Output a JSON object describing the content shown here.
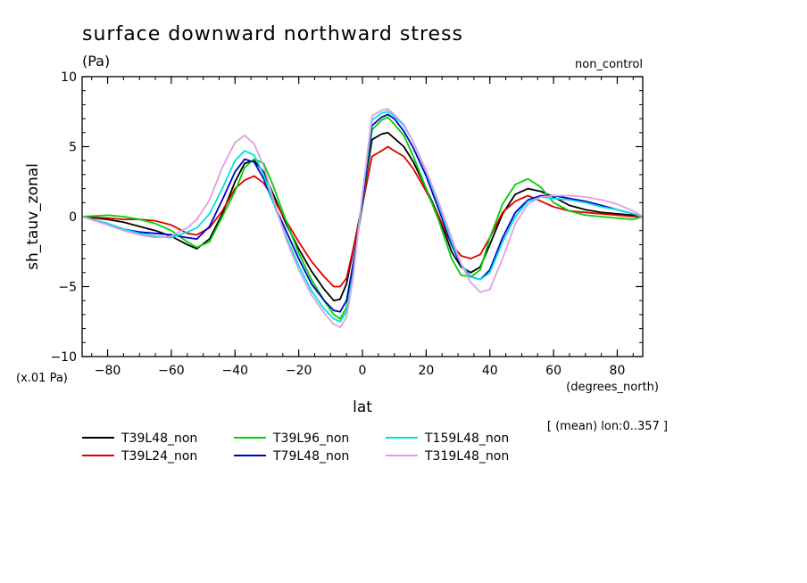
{
  "chart_data": {
    "type": "line",
    "title": "surface downward northward stress",
    "units_label": "(Pa)",
    "experiment_label": "non_control",
    "xlabel": "lat",
    "x_units": "(degrees_north)",
    "ylabel": "sh_tauv_zonal",
    "y_scale_label": "(x.01 Pa)",
    "averaging_note": "[ (mean) lon:0..357 ]",
    "xlim": [
      -88,
      88
    ],
    "ylim": [
      -10,
      10
    ],
    "x_ticks": [
      -80,
      -60,
      -40,
      -20,
      0,
      20,
      40,
      60,
      80
    ],
    "y_ticks": [
      -10,
      -5,
      0,
      5,
      10
    ],
    "y_tick_labels": [
      "−10",
      "−5",
      "0",
      "5",
      "10"
    ],
    "x_tick_labels": [
      "−80",
      "−60",
      "−40",
      "−20",
      "0",
      "20",
      "40",
      "60",
      "80"
    ],
    "legend_placement": "bottom",
    "grid": false,
    "x": [
      -88,
      -80,
      -75,
      -70,
      -65,
      -60,
      -55,
      -52,
      -48,
      -44,
      -40,
      -37,
      -34,
      -31,
      -28,
      -24,
      -20,
      -16,
      -12,
      -9,
      -7,
      -5,
      -3,
      0,
      3,
      6,
      8,
      10,
      13,
      16,
      20,
      24,
      28,
      31,
      34,
      37,
      40,
      44,
      48,
      52,
      56,
      60,
      65,
      70,
      75,
      80,
      85,
      88
    ],
    "series": [
      {
        "name": "T39L48_non",
        "color": "#000000",
        "values": [
          0.0,
          -0.2,
          -0.4,
          -0.7,
          -1.0,
          -1.4,
          -2.0,
          -2.3,
          -1.6,
          0.2,
          2.5,
          3.8,
          4.0,
          3.2,
          1.6,
          -0.5,
          -2.3,
          -3.9,
          -5.2,
          -6.0,
          -5.9,
          -4.8,
          -2.5,
          1.0,
          5.5,
          5.9,
          6.0,
          5.6,
          5.0,
          3.9,
          2.0,
          0.0,
          -2.5,
          -3.6,
          -4.0,
          -3.6,
          -2.0,
          0.2,
          1.6,
          2.0,
          1.8,
          1.4,
          0.8,
          0.5,
          0.3,
          0.2,
          0.1,
          0.0
        ]
      },
      {
        "name": "T39L24_non",
        "color": "#e00000",
        "values": [
          0.0,
          -0.1,
          -0.2,
          -0.2,
          -0.3,
          -0.6,
          -1.2,
          -1.3,
          -0.8,
          0.4,
          2.0,
          2.6,
          2.9,
          2.4,
          1.3,
          -0.3,
          -1.8,
          -3.2,
          -4.3,
          -5.0,
          -5.0,
          -4.4,
          -2.4,
          0.8,
          4.3,
          4.7,
          5.0,
          4.7,
          4.3,
          3.4,
          1.8,
          0.0,
          -2.0,
          -2.8,
          -3.0,
          -2.7,
          -1.5,
          0.3,
          1.1,
          1.5,
          1.1,
          0.7,
          0.4,
          0.3,
          0.2,
          0.1,
          0.0,
          0.0
        ]
      },
      {
        "name": "T39L96_non",
        "color": "#00d000",
        "values": [
          0.0,
          0.1,
          0.0,
          -0.2,
          -0.5,
          -1.0,
          -1.8,
          -2.2,
          -1.8,
          0.0,
          1.8,
          3.5,
          4.1,
          3.8,
          2.2,
          -0.3,
          -2.6,
          -4.5,
          -6.0,
          -7.0,
          -7.3,
          -6.5,
          -3.5,
          0.8,
          6.2,
          6.9,
          7.1,
          6.6,
          5.8,
          4.3,
          2.0,
          -0.3,
          -3.0,
          -4.2,
          -4.3,
          -3.8,
          -1.5,
          0.9,
          2.3,
          2.7,
          2.1,
          1.0,
          0.4,
          0.1,
          0.0,
          -0.1,
          -0.2,
          0.0
        ]
      },
      {
        "name": "T79L48_non",
        "color": "#0000cc",
        "values": [
          0.0,
          -0.5,
          -0.9,
          -1.1,
          -1.2,
          -1.3,
          -1.5,
          -1.6,
          -0.7,
          1.2,
          3.2,
          4.1,
          3.9,
          2.7,
          1.0,
          -1.0,
          -3.0,
          -4.8,
          -6.0,
          -6.7,
          -6.8,
          -6.0,
          -3.5,
          1.0,
          6.5,
          7.1,
          7.3,
          7.0,
          6.1,
          4.9,
          2.9,
          0.5,
          -2.0,
          -3.5,
          -4.3,
          -4.5,
          -3.8,
          -1.5,
          0.3,
          1.2,
          1.5,
          1.5,
          1.3,
          1.1,
          0.8,
          0.5,
          0.2,
          0.0
        ]
      },
      {
        "name": "T159L48_non",
        "color": "#00e0e0",
        "values": [
          0.0,
          -0.5,
          -0.9,
          -1.2,
          -1.4,
          -1.5,
          -1.1,
          -0.8,
          0.2,
          2.0,
          4.0,
          4.7,
          4.4,
          3.0,
          1.0,
          -1.4,
          -3.5,
          -5.3,
          -6.6,
          -7.3,
          -7.5,
          -6.8,
          -4.2,
          1.5,
          6.9,
          7.4,
          7.5,
          7.2,
          6.5,
          5.3,
          3.2,
          0.8,
          -1.8,
          -3.4,
          -4.3,
          -4.5,
          -4.0,
          -1.8,
          0.0,
          1.1,
          1.4,
          1.3,
          1.2,
          1.0,
          0.7,
          0.5,
          0.2,
          0.0
        ]
      },
      {
        "name": "T319L48_non",
        "color": "#e0a0e0",
        "values": [
          0.0,
          -0.6,
          -1.0,
          -1.3,
          -1.5,
          -1.4,
          -0.8,
          -0.2,
          1.2,
          3.5,
          5.3,
          5.8,
          5.2,
          3.6,
          1.3,
          -1.6,
          -3.8,
          -5.6,
          -6.9,
          -7.7,
          -7.9,
          -7.2,
          -4.5,
          1.6,
          7.2,
          7.6,
          7.7,
          7.3,
          6.6,
          5.3,
          3.3,
          1.0,
          -1.5,
          -3.4,
          -4.7,
          -5.4,
          -5.2,
          -3.0,
          -0.5,
          0.9,
          1.4,
          1.5,
          1.5,
          1.4,
          1.2,
          0.9,
          0.4,
          0.0
        ]
      }
    ]
  }
}
